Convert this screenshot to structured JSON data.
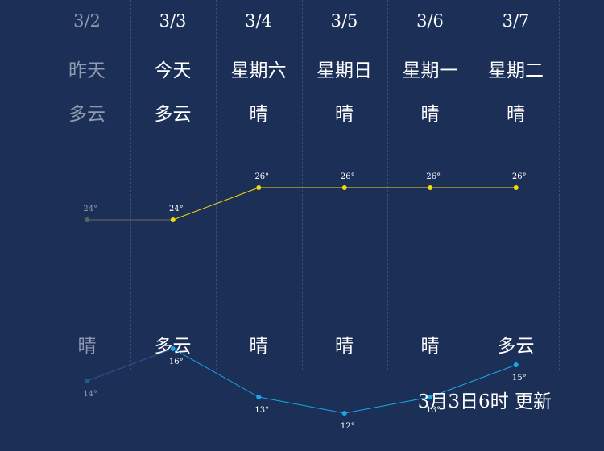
{
  "days": [
    {
      "date": "3/2",
      "day": "昨天",
      "weather_day": "多云",
      "weather_night": "晴",
      "high": 24,
      "low": 14,
      "past": true
    },
    {
      "date": "3/3",
      "day": "今天",
      "weather_day": "多云",
      "weather_night": "多云",
      "high": 24,
      "low": 16,
      "past": false
    },
    {
      "date": "3/4",
      "day": "星期六",
      "weather_day": "晴",
      "weather_night": "晴",
      "high": 26,
      "low": 13,
      "past": false
    },
    {
      "date": "3/5",
      "day": "星期日",
      "weather_day": "晴",
      "weather_night": "晴",
      "high": 26,
      "low": 12,
      "past": false
    },
    {
      "date": "3/6",
      "day": "星期一",
      "weather_day": "晴",
      "weather_night": "晴",
      "high": 26,
      "low": 13,
      "past": false
    },
    {
      "date": "3/7",
      "day": "星期二",
      "weather_day": "晴",
      "weather_night": "多云",
      "high": 26,
      "low": 15,
      "past": false
    }
  ],
  "chart_data": {
    "type": "line",
    "categories": [
      "3/2",
      "3/3",
      "3/4",
      "3/5",
      "3/6",
      "3/7"
    ],
    "series": [
      {
        "values": [
          24,
          24,
          26,
          26,
          26,
          26
        ],
        "color": "#f5d90a"
      },
      {
        "values": [
          14,
          16,
          13,
          12,
          13,
          15
        ],
        "color": "#1aa7e8"
      }
    ],
    "unit": "°"
  },
  "update_text": "3月3日6时 更新"
}
